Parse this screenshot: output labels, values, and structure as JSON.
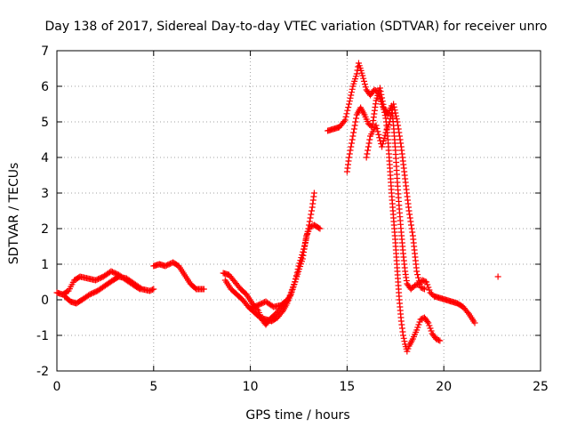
{
  "colors": {
    "series": "#ff0000",
    "axis": "#000000",
    "grid": "#a0a0a0"
  },
  "chart_data": {
    "type": "scatter",
    "title": "Day 138 of 2017, Sidereal Day-to-day VTEC variation (SDTVAR) for receiver unro",
    "xlabel": "GPS time / hours",
    "ylabel": "SDTVAR / TECUs",
    "xlim": [
      0,
      25
    ],
    "ylim": [
      -2,
      7
    ],
    "xticks": [
      0,
      5,
      10,
      15,
      20,
      25
    ],
    "yticks": [
      -2,
      -1,
      0,
      1,
      2,
      3,
      4,
      5,
      6,
      7
    ],
    "grid": true,
    "marker": "+",
    "series": [
      {
        "name": "SDTVAR",
        "tracks": [
          [
            [
              0.0,
              0.2
            ],
            [
              0.3,
              0.15
            ],
            [
              0.6,
              0.25
            ],
            [
              0.9,
              0.55
            ],
            [
              1.2,
              0.65
            ],
            [
              1.6,
              0.6
            ],
            [
              2.0,
              0.55
            ],
            [
              2.4,
              0.65
            ],
            [
              2.8,
              0.8
            ],
            [
              3.2,
              0.7
            ],
            [
              3.6,
              0.55
            ],
            [
              4.0,
              0.4
            ],
            [
              4.3,
              0.3
            ]
          ],
          [
            [
              0.4,
              0.1
            ],
            [
              0.7,
              -0.05
            ],
            [
              1.0,
              -0.1
            ],
            [
              1.3,
              0.0
            ],
            [
              1.7,
              0.15
            ],
            [
              2.1,
              0.25
            ],
            [
              2.5,
              0.4
            ],
            [
              2.9,
              0.55
            ],
            [
              3.2,
              0.65
            ],
            [
              3.6,
              0.6
            ],
            [
              4.0,
              0.45
            ],
            [
              4.4,
              0.3
            ],
            [
              4.8,
              0.25
            ],
            [
              5.0,
              0.3
            ]
          ],
          [
            [
              5.0,
              0.95
            ],
            [
              5.3,
              1.0
            ],
            [
              5.6,
              0.95
            ],
            [
              6.0,
              1.05
            ],
            [
              6.3,
              0.95
            ],
            [
              6.6,
              0.7
            ],
            [
              6.9,
              0.45
            ],
            [
              7.2,
              0.3
            ],
            [
              7.6,
              0.3
            ]
          ],
          [
            [
              8.6,
              0.75
            ],
            [
              8.9,
              0.7
            ],
            [
              9.2,
              0.5
            ],
            [
              9.5,
              0.3
            ],
            [
              9.8,
              0.15
            ],
            [
              10.1,
              -0.1
            ],
            [
              10.4,
              -0.3
            ],
            [
              10.6,
              -0.55
            ],
            [
              10.8,
              -0.7
            ],
            [
              11.0,
              -0.55
            ],
            [
              11.3,
              -0.4
            ],
            [
              11.6,
              -0.2
            ],
            [
              11.9,
              -0.05
            ],
            [
              12.1,
              0.15
            ],
            [
              12.4,
              0.65
            ],
            [
              12.7,
              1.15
            ],
            [
              12.9,
              1.8
            ],
            [
              13.1,
              2.05
            ],
            [
              13.3,
              2.1
            ],
            [
              13.6,
              2.0
            ]
          ],
          [
            [
              8.7,
              0.55
            ],
            [
              9.0,
              0.3
            ],
            [
              9.3,
              0.15
            ],
            [
              9.6,
              0.0
            ],
            [
              9.9,
              -0.2
            ],
            [
              10.2,
              -0.35
            ],
            [
              10.5,
              -0.5
            ],
            [
              10.8,
              -0.55
            ],
            [
              11.1,
              -0.6
            ],
            [
              11.4,
              -0.5
            ],
            [
              11.7,
              -0.3
            ],
            [
              11.9,
              -0.1
            ],
            [
              12.1,
              0.2
            ],
            [
              12.3,
              0.5
            ],
            [
              12.5,
              0.95
            ],
            [
              12.8,
              1.5
            ],
            [
              13.0,
              2.0
            ],
            [
              13.2,
              2.6
            ],
            [
              13.3,
              3.0
            ]
          ],
          [
            [
              10.0,
              -0.25
            ],
            [
              10.4,
              -0.15
            ],
            [
              10.8,
              -0.05
            ],
            [
              11.2,
              -0.2
            ],
            [
              11.6,
              -0.15
            ],
            [
              11.9,
              0.0
            ]
          ],
          [
            [
              14.0,
              4.75
            ],
            [
              14.3,
              4.8
            ],
            [
              14.6,
              4.85
            ],
            [
              14.9,
              5.05
            ],
            [
              15.1,
              5.5
            ],
            [
              15.3,
              6.0
            ],
            [
              15.5,
              6.35
            ],
            [
              15.6,
              6.65
            ],
            [
              15.8,
              6.3
            ],
            [
              16.0,
              5.9
            ],
            [
              16.2,
              5.75
            ],
            [
              16.4,
              5.9
            ],
            [
              16.6,
              5.85
            ],
            [
              16.8,
              5.5
            ],
            [
              16.9,
              5.35
            ],
            [
              17.0,
              5.1
            ],
            [
              17.1,
              4.6
            ],
            [
              17.2,
              3.8
            ],
            [
              17.3,
              3.0
            ],
            [
              17.4,
              2.3
            ],
            [
              17.5,
              1.6
            ],
            [
              17.6,
              0.8
            ],
            [
              17.7,
              0.0
            ],
            [
              17.8,
              -0.6
            ],
            [
              17.9,
              -1.0
            ],
            [
              18.0,
              -1.25
            ],
            [
              18.1,
              -1.45
            ],
            [
              18.2,
              -1.3
            ],
            [
              18.4,
              -1.1
            ],
            [
              18.6,
              -0.85
            ],
            [
              18.8,
              -0.55
            ],
            [
              19.0,
              -0.5
            ],
            [
              19.2,
              -0.65
            ],
            [
              19.4,
              -0.95
            ],
            [
              19.6,
              -1.1
            ],
            [
              19.8,
              -1.15
            ]
          ],
          [
            [
              15.0,
              3.6
            ],
            [
              15.1,
              4.0
            ],
            [
              15.3,
              4.6
            ],
            [
              15.5,
              5.2
            ],
            [
              15.7,
              5.4
            ],
            [
              15.9,
              5.2
            ],
            [
              16.1,
              4.95
            ],
            [
              16.3,
              4.85
            ],
            [
              16.5,
              5.6
            ],
            [
              16.7,
              5.95
            ],
            [
              16.9,
              5.4
            ],
            [
              17.1,
              5.2
            ],
            [
              17.3,
              5.45
            ],
            [
              17.4,
              4.9
            ],
            [
              17.5,
              4.2
            ],
            [
              17.6,
              3.3
            ],
            [
              17.7,
              2.55
            ],
            [
              17.8,
              1.9
            ],
            [
              17.9,
              1.3
            ],
            [
              18.0,
              0.8
            ],
            [
              18.1,
              0.45
            ],
            [
              18.3,
              0.3
            ],
            [
              18.5,
              0.4
            ],
            [
              18.7,
              0.45
            ],
            [
              18.9,
              0.55
            ],
            [
              19.1,
              0.5
            ],
            [
              19.3,
              0.2
            ],
            [
              19.5,
              0.1
            ],
            [
              19.8,
              0.05
            ],
            [
              20.1,
              0.0
            ],
            [
              20.4,
              -0.05
            ],
            [
              20.7,
              -0.1
            ],
            [
              21.0,
              -0.2
            ],
            [
              21.3,
              -0.4
            ],
            [
              21.6,
              -0.65
            ]
          ],
          [
            [
              16.0,
              4.0
            ],
            [
              16.2,
              4.6
            ],
            [
              16.5,
              4.9
            ],
            [
              16.8,
              4.3
            ],
            [
              17.0,
              4.7
            ],
            [
              17.2,
              5.0
            ],
            [
              17.4,
              5.5
            ],
            [
              17.6,
              5.0
            ],
            [
              17.8,
              4.3
            ],
            [
              18.0,
              3.4
            ],
            [
              18.2,
              2.5
            ],
            [
              18.4,
              1.8
            ],
            [
              18.5,
              1.3
            ],
            [
              18.6,
              0.8
            ],
            [
              18.8,
              0.35
            ],
            [
              19.0,
              0.3
            ]
          ],
          [
            [
              22.8,
              0.65
            ]
          ]
        ]
      }
    ]
  }
}
